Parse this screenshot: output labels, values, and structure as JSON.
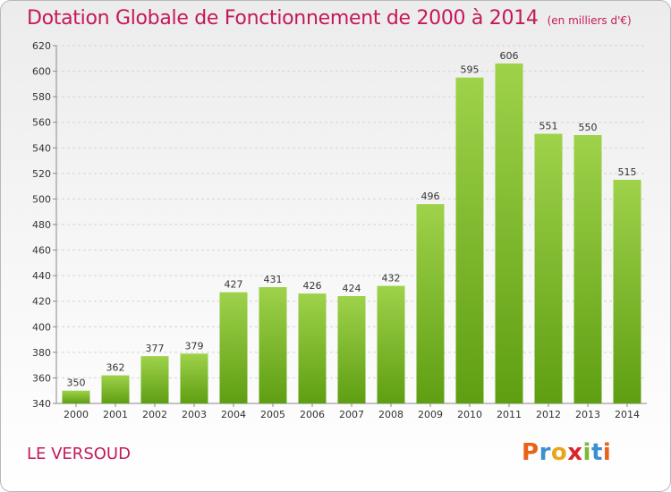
{
  "title": "Dotation Globale de Fonctionnement de 2000 à 2014",
  "unit_label": "(en milliers d'€)",
  "commune": "LE VERSOUD",
  "logo_text": "Proxiti",
  "colors": {
    "title": "#c4185a",
    "bar_light": "#9ed24a",
    "bar_dark": "#5f9e12",
    "grid": "#d4d4d4",
    "logo_letters": [
      "#e8621a",
      "#3c8fd0",
      "#e8a61a",
      "#d9262b",
      "#7db83a",
      "#3c8fd0",
      "#e8621a"
    ]
  },
  "chart_data": {
    "type": "bar",
    "title": "Dotation Globale de Fonctionnement de 2000 à 2014",
    "xlabel": "",
    "ylabel": "",
    "categories": [
      "2000",
      "2001",
      "2002",
      "2003",
      "2004",
      "2005",
      "2006",
      "2007",
      "2008",
      "2009",
      "2010",
      "2011",
      "2012",
      "2013",
      "2014"
    ],
    "values": [
      350,
      362,
      377,
      379,
      427,
      431,
      426,
      424,
      432,
      496,
      595,
      606,
      551,
      550,
      515
    ],
    "ylim": [
      340,
      620
    ],
    "yticks": [
      340,
      360,
      380,
      400,
      420,
      440,
      460,
      480,
      500,
      520,
      540,
      560,
      580,
      600,
      620
    ],
    "grid": true,
    "legend": "none"
  }
}
